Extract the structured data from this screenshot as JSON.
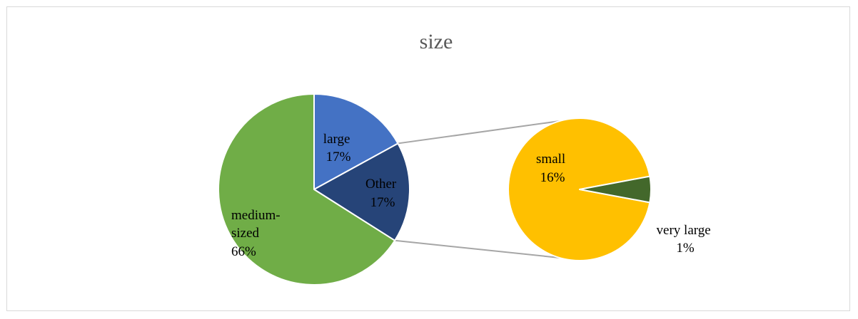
{
  "chart_data": {
    "type": "pie",
    "subtype": "pie-of-pie",
    "title": "size",
    "main_pie": {
      "slices": [
        {
          "label": "large",
          "value": 17,
          "percent_label": "17%",
          "color": "#4472c4"
        },
        {
          "label": "Other",
          "value": 17,
          "percent_label": "17%",
          "color": "#264478",
          "is_other": true
        },
        {
          "label": "medium-sized",
          "value": 66,
          "percent_label": "66%",
          "color": "#70ad47"
        }
      ]
    },
    "secondary_pie": {
      "slices": [
        {
          "label": "small",
          "value": 16,
          "percent_label": "16%",
          "color": "#ffc000"
        },
        {
          "label": "very large",
          "value": 1,
          "percent_label": "1%",
          "color": "#43682b"
        }
      ]
    },
    "connector_color": "#a6a6a6",
    "legend": "none"
  }
}
